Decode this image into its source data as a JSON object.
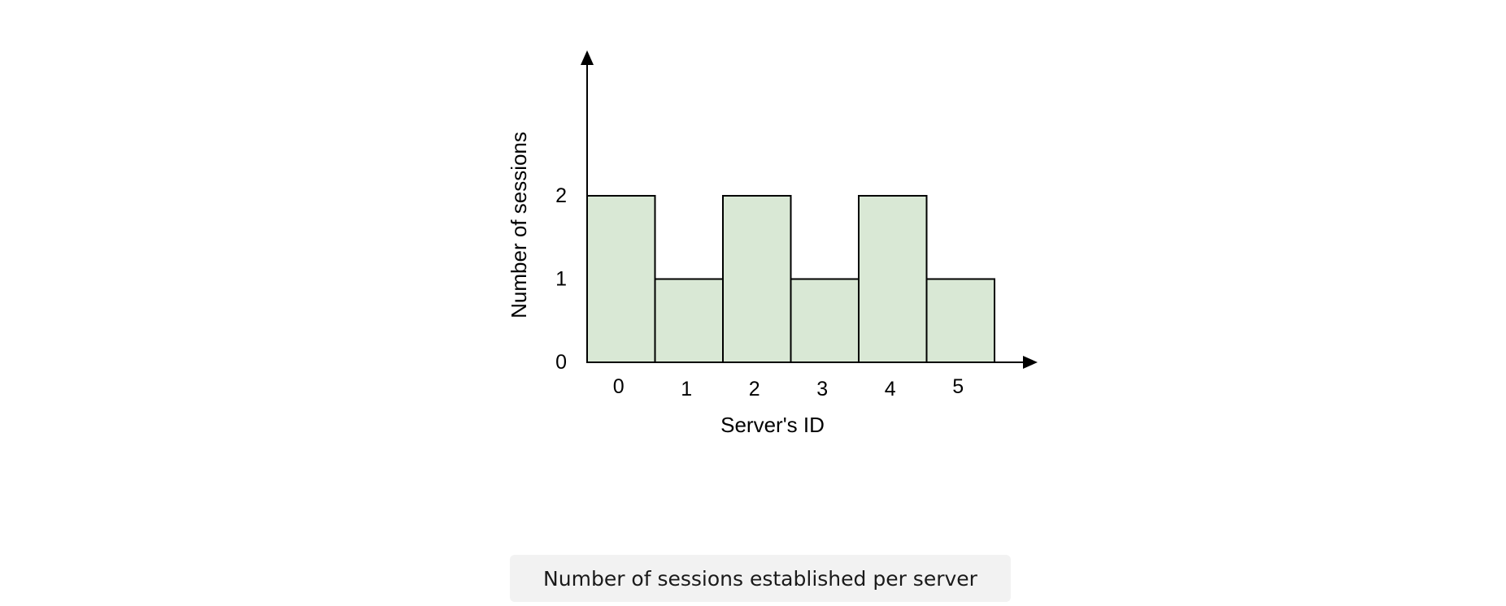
{
  "chart_data": {
    "type": "bar",
    "categories": [
      "0",
      "1",
      "2",
      "3",
      "4",
      "5"
    ],
    "values": [
      2,
      1,
      2,
      1,
      2,
      1
    ],
    "title": "",
    "xlabel": "Server's ID",
    "ylabel": "Number of sessions",
    "yticks": [
      "0",
      "1",
      "2"
    ],
    "ylim": [
      0,
      3.8
    ],
    "grid": false,
    "colors": {
      "bar_fill": "#d9e8d5",
      "bar_stroke": "#000000"
    }
  },
  "caption": {
    "text": "Number of sessions established per server"
  }
}
